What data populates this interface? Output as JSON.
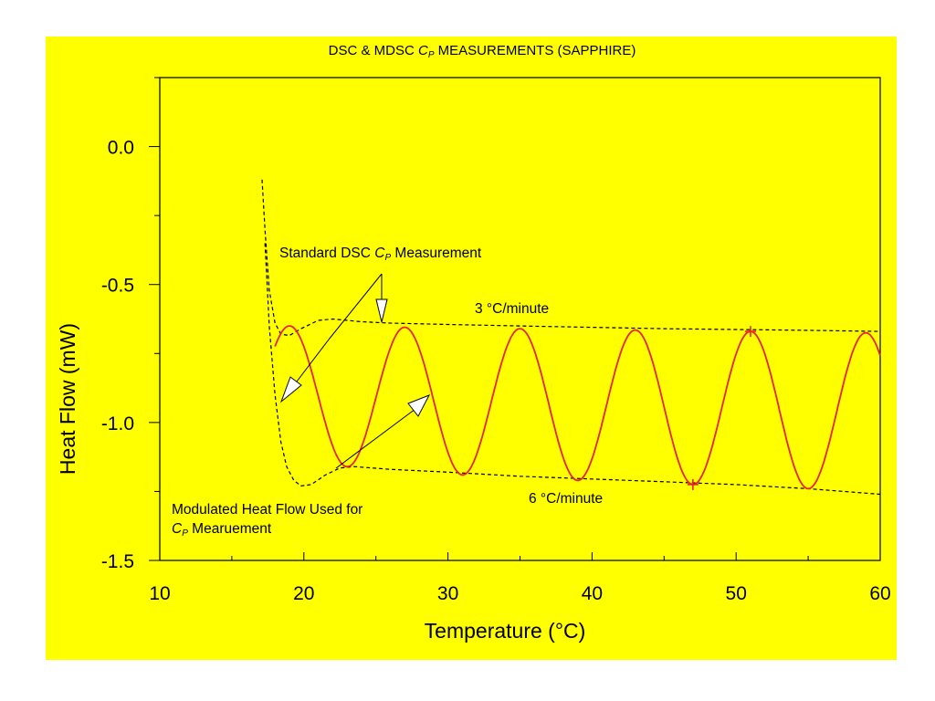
{
  "chart_data": {
    "type": "line",
    "title_prefix": "DSC & MDSC ",
    "title_cp": "C",
    "title_sub": "P",
    "title_suffix": " MEASUREMENTS (SAPPHIRE)",
    "xlabel": "Temperature (°C)",
    "ylabel": "Heat Flow (mW)",
    "xlim": [
      10,
      60
    ],
    "ylim": [
      -1.5,
      0.25
    ],
    "xticks": [
      "10",
      "20",
      "30",
      "40",
      "50",
      "60"
    ],
    "yticks": [
      "0.0",
      "-0.5",
      "-1.0",
      "-1.5"
    ],
    "xtick_values": [
      10,
      20,
      30,
      40,
      50,
      60
    ],
    "ytick_values": [
      0.0,
      -0.5,
      -1.0,
      -1.5
    ],
    "grid": false,
    "series": [
      {
        "style": "dashed",
        "color": "#000000",
        "x": [
          17.1,
          17.3,
          17.6,
          18.0,
          18.4,
          19.0,
          19.8,
          21.0,
          22.0,
          24.0,
          26.0,
          30.0,
          35.0,
          40.0,
          45.0,
          50.0,
          55.0,
          60.0
        ],
        "y": [
          -0.12,
          -0.3,
          -0.52,
          -0.64,
          -0.68,
          -0.685,
          -0.66,
          -0.63,
          -0.625,
          -0.635,
          -0.64,
          -0.645,
          -0.65,
          -0.655,
          -0.66,
          -0.663,
          -0.666,
          -0.67
        ]
      },
      {
        "style": "dashed",
        "color": "#000000",
        "x": [
          17.3,
          17.6,
          18.0,
          18.4,
          18.8,
          19.3,
          19.8,
          20.5,
          21.5,
          22.5,
          23.5,
          26.0,
          30.0,
          35.0,
          40.0,
          45.0,
          50.0,
          55.0,
          60.0
        ],
        "y": [
          -0.35,
          -0.65,
          -0.9,
          -1.07,
          -1.16,
          -1.21,
          -1.23,
          -1.225,
          -1.19,
          -1.165,
          -1.16,
          -1.17,
          -1.18,
          -1.195,
          -1.205,
          -1.215,
          -1.225,
          -1.24,
          -1.26
        ]
      },
      {
        "style": "solid",
        "color": "#e8232b",
        "period": 8,
        "phase_x": 19.0,
        "x_start": 18.0,
        "x_end": 60.0,
        "peaks_x": [
          19,
          27,
          35,
          43,
          51,
          59
        ],
        "peaks_y": [
          -0.65,
          -0.655,
          -0.66,
          -0.665,
          -0.67,
          -0.675
        ],
        "troughs_x": [
          23,
          31,
          39,
          47,
          55
        ],
        "troughs_y": [
          -1.16,
          -1.19,
          -1.21,
          -1.225,
          -1.24
        ]
      }
    ],
    "markers": [
      {
        "x": 51,
        "y": -0.67,
        "shape": "plus",
        "color": "#e8232b"
      },
      {
        "x": 47,
        "y": -1.225,
        "shape": "plus",
        "color": "#e8232b"
      }
    ],
    "annotations": {
      "standard_prefix": "Standard DSC ",
      "standard_cp": "C",
      "standard_sub": "P",
      "standard_suffix": " Measurement",
      "rate_top": "3 °C/minute",
      "rate_bottom": "6 °C/minute",
      "modulated_line1": "Modulated Heat Flow Used for",
      "modulated_cp": "C",
      "modulated_sub": "P",
      "modulated_line2_suffix": " Mearuement"
    },
    "colors": {
      "background": "#ffff00",
      "page": "#ffffff",
      "modulated": "#e8232b",
      "ink": "#000000"
    }
  }
}
